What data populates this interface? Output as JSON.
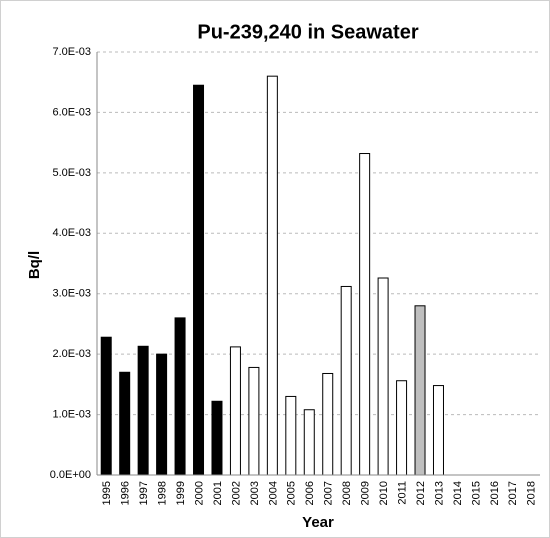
{
  "chart_data": {
    "type": "bar",
    "title": "Pu-239,240 in Seawater",
    "x_label": "Year",
    "y_label": "Bq/l",
    "categories": [
      "1995",
      "1996",
      "1997",
      "1998",
      "1999",
      "2000",
      "2001",
      "2002",
      "2003",
      "2004",
      "2005",
      "2006",
      "2007",
      "2008",
      "2009",
      "2010",
      "2011",
      "2012",
      "2013",
      "2014",
      "2015",
      "2016",
      "2017",
      "2018"
    ],
    "values": [
      0.00228,
      0.0017,
      0.00213,
      0.002,
      0.0026,
      0.00645,
      0.00122,
      0.00212,
      0.00178,
      0.0066,
      0.0013,
      0.00108,
      0.00168,
      0.00312,
      0.00532,
      0.00326,
      0.00156,
      0.0028,
      0.00148,
      null,
      null,
      null,
      null,
      null
    ],
    "colors": [
      "#000000",
      "#000000",
      "#000000",
      "#000000",
      "#000000",
      "#000000",
      "#000000",
      "#ffffff",
      "#ffffff",
      "#ffffff",
      "#ffffff",
      "#ffffff",
      "#ffffff",
      "#ffffff",
      "#ffffff",
      "#ffffff",
      "#ffffff",
      "#bfbfbf",
      "#ffffff",
      "#ffffff",
      "#ffffff",
      "#ffffff",
      "#ffffff",
      "#ffffff"
    ],
    "ylim": [
      0,
      0.007
    ],
    "yticks": [
      {
        "value": 0,
        "label": "0.0E+00"
      },
      {
        "value": 0.001,
        "label": "1.0E-03"
      },
      {
        "value": 0.002,
        "label": "2.0E-03"
      },
      {
        "value": 0.003,
        "label": "3.0E-03"
      },
      {
        "value": 0.004,
        "label": "4.0E-03"
      },
      {
        "value": 0.005,
        "label": "5.0E-03"
      },
      {
        "value": 0.006,
        "label": "6.0E-03"
      },
      {
        "value": 0.007,
        "label": "7.0E-03"
      }
    ],
    "grid": true
  }
}
